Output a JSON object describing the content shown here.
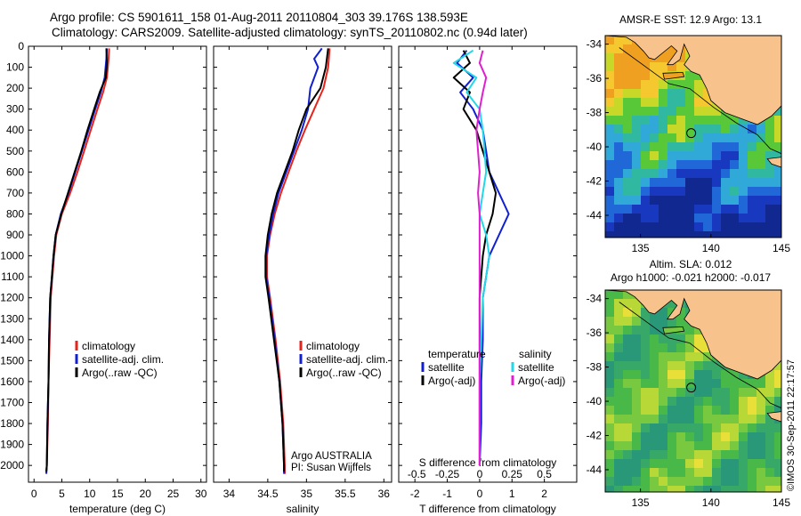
{
  "header": {
    "title_line1": "Argo profile: CS 5901611_158 01-Aug-2011 20110804_303 39.176S 138.593E",
    "title_line2": "Climatology: CARS2009. Satellite-adjusted climatology: synTS_20110802.nc (0.94d later)"
  },
  "watermark": "©IMOS 30-Sep-2011 22:17:57",
  "colors": {
    "climatology": "#e8231c",
    "satellite": "#1020d0",
    "argo": "#000000",
    "satellite_s": "#22d8e8",
    "argo_s": "#e020d0"
  },
  "chart_data": [
    {
      "id": "temperature",
      "type": "line",
      "xlabel": "temperature (deg C)",
      "ylabel": "",
      "xlim": [
        -1,
        31
      ],
      "ylim": [
        2080,
        0
      ],
      "xticks": [
        0,
        5,
        10,
        15,
        20,
        25,
        30
      ],
      "yticks": [
        0,
        100,
        200,
        300,
        400,
        500,
        600,
        700,
        800,
        900,
        1000,
        1100,
        1200,
        1300,
        1400,
        1500,
        1600,
        1700,
        1800,
        1900,
        2000
      ],
      "legend": {
        "placement": "lower-center",
        "entries": [
          "climatology",
          "satellite-adj. clim.",
          "Argo(..raw -QC)"
        ]
      },
      "series": [
        {
          "name": "climatology",
          "color": "#e8231c",
          "points": [
            [
              13.5,
              10
            ],
            [
              13.4,
              60
            ],
            [
              13.1,
              150
            ],
            [
              12.4,
              220
            ],
            [
              11.4,
              300
            ],
            [
              10.2,
              400
            ],
            [
              9.0,
              500
            ],
            [
              7.8,
              600
            ],
            [
              6.5,
              700
            ],
            [
              5.0,
              800
            ],
            [
              4.0,
              900
            ],
            [
              3.6,
              1000
            ],
            [
              3.3,
              1100
            ],
            [
              3.0,
              1200
            ],
            [
              2.8,
              1400
            ],
            [
              2.6,
              1600
            ],
            [
              2.5,
              1800
            ],
            [
              2.3,
              2000
            ],
            [
              2.2,
              2040
            ]
          ]
        },
        {
          "name": "satellite-adj. clim.",
          "color": "#1020d0",
          "points": [
            [
              13.1,
              10
            ],
            [
              13.0,
              60
            ],
            [
              12.7,
              150
            ],
            [
              12.0,
              220
            ],
            [
              11.0,
              300
            ],
            [
              9.8,
              400
            ],
            [
              8.6,
              500
            ],
            [
              7.4,
              600
            ],
            [
              6.2,
              700
            ],
            [
              4.8,
              800
            ],
            [
              3.9,
              900
            ],
            [
              3.5,
              1000
            ],
            [
              3.2,
              1100
            ],
            [
              2.9,
              1200
            ],
            [
              2.7,
              1400
            ],
            [
              2.6,
              1600
            ],
            [
              2.4,
              1800
            ],
            [
              2.3,
              2000
            ],
            [
              2.2,
              2040
            ]
          ]
        },
        {
          "name": "Argo(..raw -QC)",
          "color": "#000000",
          "points": [
            [
              13.0,
              10
            ],
            [
              13.1,
              80
            ],
            [
              12.9,
              150
            ],
            [
              11.8,
              220
            ],
            [
              10.8,
              300
            ],
            [
              9.6,
              400
            ],
            [
              8.5,
              500
            ],
            [
              7.3,
              600
            ],
            [
              6.1,
              700
            ],
            [
              4.9,
              800
            ],
            [
              3.9,
              900
            ],
            [
              3.5,
              1000
            ],
            [
              3.2,
              1100
            ],
            [
              2.9,
              1200
            ],
            [
              2.7,
              1400
            ],
            [
              2.6,
              1600
            ],
            [
              2.4,
              1800
            ],
            [
              2.3,
              2000
            ],
            [
              2.2,
              2030
            ]
          ]
        }
      ]
    },
    {
      "id": "salinity",
      "type": "line",
      "xlabel": "salinity",
      "ylabel": "",
      "xlim": [
        33.8,
        36.1
      ],
      "ylim": [
        2080,
        0
      ],
      "xticks": [
        34,
        34.5,
        35,
        35.5,
        36
      ],
      "xticklabels": [
        "34",
        "34.5",
        "35",
        "35.5",
        "36"
      ],
      "legend": {
        "placement": "lower-right",
        "entries": [
          "climatology",
          "satellite-adj. clim.",
          "Argo(..raw -QC)"
        ]
      },
      "annotation": [
        "Argo AUSTRALIA",
        "PI: Susan Wijffels"
      ],
      "series": [
        {
          "name": "climatology",
          "color": "#e8231c",
          "points": [
            [
              35.3,
              10
            ],
            [
              35.28,
              100
            ],
            [
              35.22,
              200
            ],
            [
              35.1,
              300
            ],
            [
              34.98,
              400
            ],
            [
              34.87,
              500
            ],
            [
              34.77,
              600
            ],
            [
              34.67,
              700
            ],
            [
              34.59,
              800
            ],
            [
              34.53,
              900
            ],
            [
              34.49,
              1000
            ],
            [
              34.49,
              1100
            ],
            [
              34.53,
              1200
            ],
            [
              34.6,
              1400
            ],
            [
              34.66,
              1600
            ],
            [
              34.7,
              1800
            ],
            [
              34.72,
              2000
            ],
            [
              34.72,
              2040
            ]
          ]
        },
        {
          "name": "satellite-adj. clim.",
          "color": "#1020d0",
          "points": [
            [
              35.2,
              10
            ],
            [
              35.1,
              60
            ],
            [
              35.15,
              100
            ],
            [
              35.05,
              200
            ],
            [
              35.02,
              300
            ],
            [
              34.94,
              400
            ],
            [
              34.84,
              500
            ],
            [
              34.74,
              600
            ],
            [
              34.64,
              700
            ],
            [
              34.57,
              800
            ],
            [
              34.52,
              900
            ],
            [
              34.48,
              1000
            ],
            [
              34.48,
              1100
            ],
            [
              34.52,
              1200
            ],
            [
              34.59,
              1400
            ],
            [
              34.65,
              1600
            ],
            [
              34.69,
              1800
            ],
            [
              34.71,
              2000
            ],
            [
              34.71,
              2040
            ]
          ]
        },
        {
          "name": "Argo(..raw -QC)",
          "color": "#000000",
          "points": [
            [
              35.28,
              10
            ],
            [
              35.25,
              100
            ],
            [
              35.18,
              200
            ],
            [
              35.0,
              300
            ],
            [
              34.9,
              400
            ],
            [
              34.82,
              500
            ],
            [
              34.72,
              600
            ],
            [
              34.62,
              700
            ],
            [
              34.55,
              800
            ],
            [
              34.5,
              900
            ],
            [
              34.47,
              1000
            ],
            [
              34.47,
              1100
            ],
            [
              34.51,
              1200
            ],
            [
              34.58,
              1400
            ],
            [
              34.65,
              1600
            ],
            [
              34.69,
              1800
            ],
            [
              34.71,
              2000
            ],
            [
              34.71,
              2030
            ]
          ]
        }
      ]
    },
    {
      "id": "difference",
      "type": "line",
      "xlabel": "T difference from climatology",
      "xlabel_top": "S difference from climatology",
      "xlim": [
        -2.5,
        3
      ],
      "ylim": [
        2080,
        0
      ],
      "xticks": [
        -2,
        -1,
        0,
        1,
        2
      ],
      "xticklabels_top": [
        "-0.5",
        "-0.25",
        "0",
        "0.25",
        "0.5"
      ],
      "legend": {
        "placement": "lower-center",
        "header_left": "temperature",
        "header_right": "salinity",
        "entries": [
          "satellite",
          "Argo(-adj)",
          "satellite",
          "Argo(-adj)"
        ]
      },
      "series": [
        {
          "name": "satellite",
          "quantity": "temperature",
          "color": "#1020d0",
          "points": [
            [
              -0.4,
              20
            ],
            [
              -0.7,
              80
            ],
            [
              -0.2,
              150
            ],
            [
              -0.6,
              220
            ],
            [
              -0.2,
              300
            ],
            [
              0.1,
              400
            ],
            [
              0.2,
              500
            ],
            [
              0.3,
              600
            ],
            [
              0.6,
              700
            ],
            [
              0.9,
              800
            ],
            [
              0.6,
              900
            ],
            [
              0.3,
              1000
            ],
            [
              0.2,
              1100
            ],
            [
              0.1,
              1200
            ],
            [
              0.1,
              1400
            ],
            [
              0.05,
              1600
            ],
            [
              0.05,
              1800
            ],
            [
              0.0,
              2000
            ]
          ]
        },
        {
          "name": "Argo(-adj)",
          "quantity": "temperature",
          "color": "#000000",
          "points": [
            [
              -0.5,
              20
            ],
            [
              -0.3,
              80
            ],
            [
              -0.8,
              150
            ],
            [
              -0.3,
              220
            ],
            [
              -0.5,
              300
            ],
            [
              -0.1,
              400
            ],
            [
              0.1,
              500
            ],
            [
              0.3,
              600
            ],
            [
              0.5,
              700
            ],
            [
              0.4,
              800
            ],
            [
              0.2,
              900
            ],
            [
              0.1,
              1000
            ],
            [
              0.05,
              1100
            ],
            [
              0.0,
              1200
            ],
            [
              0.0,
              1400
            ],
            [
              0.0,
              1600
            ],
            [
              0.0,
              1800
            ],
            [
              0.0,
              2000
            ]
          ]
        },
        {
          "name": "satellite",
          "quantity": "salinity",
          "color": "#22d8e8",
          "points": [
            [
              -0.2,
              20
            ],
            [
              -0.8,
              80
            ],
            [
              -0.1,
              150
            ],
            [
              -0.4,
              220
            ],
            [
              0.0,
              300
            ],
            [
              0.1,
              400
            ],
            [
              0.15,
              500
            ],
            [
              0.2,
              600
            ],
            [
              0.1,
              700
            ],
            [
              0.0,
              800
            ],
            [
              0.2,
              900
            ],
            [
              0.3,
              1000
            ],
            [
              0.2,
              1100
            ],
            [
              0.1,
              1200
            ],
            [
              0.05,
              1400
            ],
            [
              0.0,
              1600
            ],
            [
              0.0,
              1800
            ],
            [
              0.0,
              2000
            ]
          ]
        },
        {
          "name": "Argo(-adj)",
          "quantity": "salinity",
          "color": "#e020d0",
          "points": [
            [
              0.1,
              20
            ],
            [
              0.0,
              80
            ],
            [
              0.2,
              150
            ],
            [
              0.1,
              220
            ],
            [
              0.0,
              300
            ],
            [
              -0.1,
              400
            ],
            [
              -0.05,
              500
            ],
            [
              0.0,
              600
            ],
            [
              -0.05,
              700
            ],
            [
              0.0,
              800
            ],
            [
              0.0,
              900
            ],
            [
              0.0,
              1000
            ],
            [
              0.0,
              1200
            ],
            [
              0.0,
              1400
            ],
            [
              0.0,
              1600
            ],
            [
              0.0,
              1800
            ],
            [
              0.0,
              2000
            ]
          ]
        }
      ]
    },
    {
      "id": "sst_map",
      "type": "heatmap",
      "title": "AMSR-E SST: 12.9 Argo: 13.1",
      "xlim": [
        132.5,
        145
      ],
      "ylim": [
        -45.3,
        -33.5
      ],
      "xticks": [
        135,
        140,
        145
      ],
      "yticks": [
        -34,
        -36,
        -38,
        -40,
        -42,
        -44
      ],
      "marker": {
        "lon": 138.6,
        "lat": -39.2
      }
    },
    {
      "id": "sla_map",
      "type": "heatmap",
      "title_line1": "Altim. SLA: 0.012",
      "title_line2": "Argo h1000: -0.021 h2000: -0.017",
      "xlim": [
        132.5,
        145
      ],
      "ylim": [
        -45.3,
        -33.5
      ],
      "xticks": [
        135,
        140,
        145
      ],
      "yticks": [
        -34,
        -36,
        -38,
        -40,
        -42,
        -44
      ],
      "marker": {
        "lon": 138.6,
        "lat": -39.2
      }
    }
  ]
}
